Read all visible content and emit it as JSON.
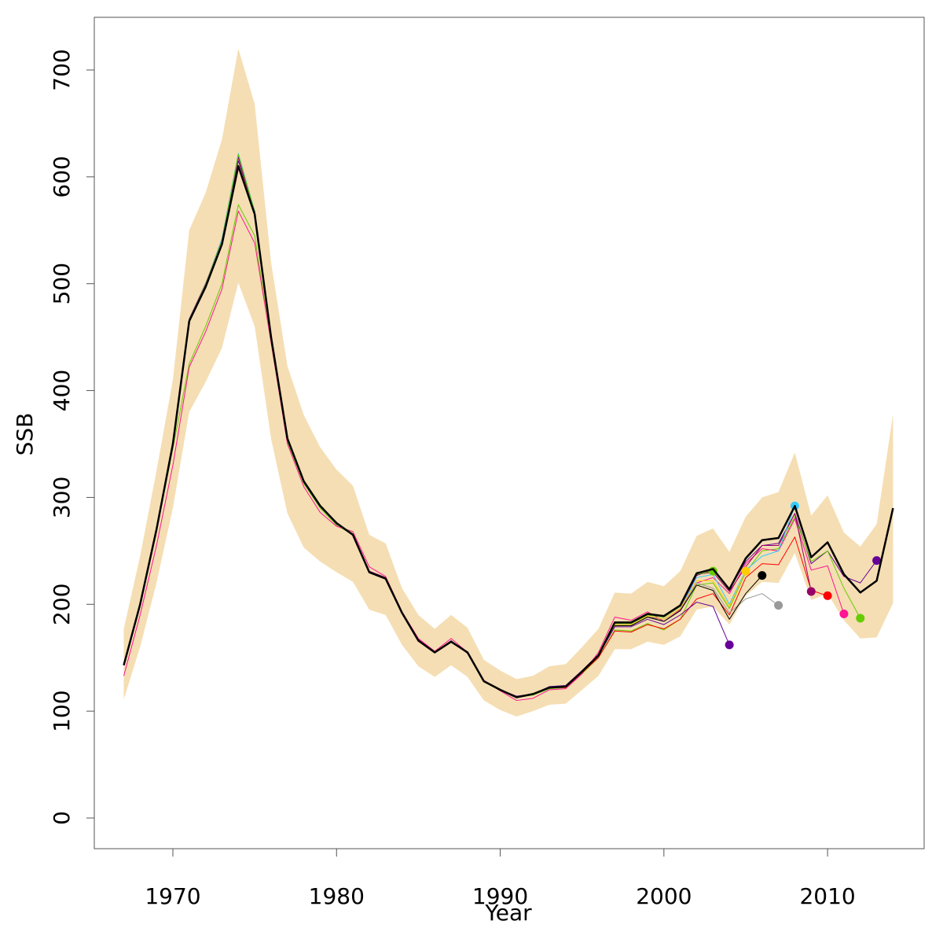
{
  "chart_data": {
    "type": "line",
    "x_label": "Year",
    "y_label": "SSB",
    "x": [
      1967,
      1968,
      1969,
      1970,
      1971,
      1972,
      1973,
      1974,
      1975,
      1976,
      1977,
      1978,
      1979,
      1980,
      1981,
      1982,
      1983,
      1984,
      1985,
      1986,
      1987,
      1988,
      1989,
      1990,
      1991,
      1992,
      1993,
      1994,
      1995,
      1996,
      1997,
      1998,
      1999,
      2000,
      2001,
      2002,
      2003,
      2004,
      2005,
      2006,
      2007,
      2008,
      2009,
      2010,
      2011,
      2012,
      2013,
      2014
    ],
    "xlim": [
      1965.2,
      2015.9
    ],
    "xticks": [
      1970,
      1980,
      1990,
      2000,
      2010
    ],
    "ylim": [
      -28.7,
      749.3
    ],
    "yticks": [
      0,
      100,
      200,
      300,
      400,
      500,
      600,
      700
    ],
    "band": {
      "color": "#f5deb3",
      "upper": [
        177,
        245,
        325,
        410,
        550,
        585,
        635,
        720,
        668,
        520,
        423,
        377,
        347,
        326,
        311,
        265,
        257,
        215,
        190,
        177,
        190,
        178,
        148,
        138,
        130,
        133,
        142,
        144,
        160,
        177,
        211,
        210,
        221,
        217,
        231,
        264,
        271,
        249,
        282,
        300,
        305,
        342,
        283,
        302,
        267,
        254,
        275,
        378
      ],
      "lower": [
        111,
        160,
        220,
        290,
        380,
        408,
        440,
        501,
        460,
        355,
        285,
        253,
        240,
        230,
        221,
        195,
        190,
        162,
        142,
        132,
        143,
        132,
        110,
        101,
        95,
        100,
        106,
        107,
        120,
        133,
        158,
        158,
        165,
        162,
        170,
        195,
        198,
        181,
        208,
        221,
        220,
        248,
        204,
        210,
        185,
        168,
        169,
        201
      ]
    },
    "main": {
      "color": "#000000",
      "values": [
        143,
        200,
        270,
        350,
        465,
        497,
        537,
        610,
        565,
        450,
        355,
        315,
        292,
        276,
        265,
        230,
        224,
        192,
        166,
        155,
        165,
        155,
        128,
        120,
        113,
        116,
        122,
        123,
        137,
        152,
        183,
        183,
        191,
        189,
        199,
        229,
        233,
        214,
        243,
        260,
        262,
        292,
        244,
        258,
        228,
        211,
        222,
        290
      ]
    },
    "series": [
      {
        "color": "#660099",
        "values": [
          143,
          200,
          271,
          352,
          467,
          500,
          540,
          615,
          568,
          450,
          356,
          315,
          292,
          275,
          266,
          231,
          225,
          192,
          167,
          155,
          166,
          154,
          128,
          120,
          114,
          116,
          123,
          124,
          138,
          153,
          180,
          180,
          188,
          186,
          196,
          227,
          232,
          214,
          240,
          255,
          257,
          285,
          238,
          250,
          226,
          220,
          241,
          null
        ]
      },
      {
        "color": "#66cc00",
        "values": [
          143,
          199,
          268,
          346,
          425,
          460,
          500,
          574,
          545,
          445,
          352,
          313,
          290,
          274,
          265,
          230,
          224,
          191,
          166,
          155,
          165,
          155,
          128,
          120,
          113,
          115,
          121,
          122,
          135,
          150,
          176,
          175,
          182,
          176,
          186,
          218,
          220,
          196,
          230,
          250,
          252,
          282,
          240,
          250,
          215,
          187,
          null,
          null
        ]
      },
      {
        "color": "#ff1493",
        "values": [
          133,
          190,
          255,
          330,
          422,
          455,
          495,
          568,
          538,
          445,
          350,
          310,
          286,
          273,
          268,
          235,
          226,
          193,
          168,
          156,
          168,
          155,
          129,
          119,
          110,
          112,
          120,
          121,
          135,
          155,
          188,
          185,
          193,
          184,
          195,
          220,
          225,
          210,
          238,
          252,
          250,
          280,
          232,
          236,
          191,
          null,
          null,
          null
        ]
      },
      {
        "color": "#ff0000",
        "values": [
          143,
          200,
          270,
          350,
          466,
          498,
          540,
          618,
          566,
          450,
          355,
          315,
          292,
          276,
          265,
          230,
          224,
          192,
          166,
          155,
          165,
          155,
          128,
          120,
          113,
          116,
          122,
          122,
          136,
          150,
          175,
          174,
          181,
          177,
          186,
          205,
          210,
          190,
          225,
          238,
          237,
          263,
          213,
          208,
          null,
          null,
          null,
          null
        ]
      },
      {
        "color": "#990066",
        "values": [
          143,
          200,
          270,
          350,
          466,
          499,
          542,
          620,
          567,
          451,
          356,
          316,
          293,
          276,
          266,
          231,
          225,
          193,
          167,
          155,
          165,
          155,
          128,
          120,
          113,
          116,
          122,
          123,
          137,
          152,
          182,
          182,
          190,
          188,
          198,
          228,
          230,
          212,
          235,
          255,
          255,
          285,
          212,
          null,
          null,
          null,
          null,
          null
        ]
      },
      {
        "color": "#33ccff",
        "values": [
          143,
          200,
          270,
          350,
          466,
          499,
          542,
          622,
          568,
          451,
          356,
          316,
          293,
          276,
          266,
          230,
          224,
          192,
          166,
          155,
          165,
          155,
          128,
          120,
          113,
          116,
          122,
          123,
          137,
          152,
          181,
          181,
          189,
          186,
          196,
          225,
          228,
          200,
          232,
          245,
          250,
          292,
          null,
          null,
          null,
          null,
          null,
          null
        ]
      },
      {
        "color": "#999999",
        "values": [
          143,
          200,
          270,
          350,
          466,
          499,
          540,
          620,
          567,
          451,
          356,
          316,
          293,
          276,
          266,
          230,
          224,
          192,
          166,
          155,
          165,
          155,
          128,
          120,
          113,
          116,
          122,
          123,
          137,
          152,
          180,
          180,
          188,
          184,
          194,
          220,
          215,
          192,
          205,
          210,
          199,
          null,
          null,
          null,
          null,
          null,
          null,
          null
        ]
      },
      {
        "color": "#000000",
        "values": [
          143,
          200,
          270,
          350,
          466,
          499,
          540,
          619,
          567,
          451,
          356,
          316,
          293,
          276,
          266,
          230,
          224,
          192,
          166,
          155,
          165,
          155,
          128,
          120,
          113,
          116,
          122,
          123,
          137,
          152,
          180,
          180,
          188,
          184,
          194,
          218,
          213,
          186,
          210,
          227,
          null,
          null,
          null,
          null,
          null,
          null,
          null,
          null
        ]
      },
      {
        "color": "#ffcc00",
        "values": [
          143,
          200,
          270,
          350,
          466,
          499,
          540,
          619,
          567,
          451,
          356,
          316,
          293,
          276,
          266,
          230,
          224,
          192,
          166,
          155,
          165,
          155,
          128,
          120,
          113,
          116,
          122,
          123,
          137,
          152,
          181,
          181,
          189,
          186,
          196,
          222,
          222,
          198,
          231,
          null,
          null,
          null,
          null,
          null,
          null,
          null,
          null,
          null
        ]
      },
      {
        "color": "#660099",
        "values": [
          143,
          200,
          270,
          350,
          466,
          499,
          540,
          619,
          567,
          451,
          356,
          316,
          293,
          276,
          266,
          230,
          224,
          192,
          166,
          155,
          165,
          155,
          128,
          120,
          113,
          116,
          122,
          123,
          137,
          152,
          179,
          179,
          186,
          181,
          190,
          202,
          198,
          162,
          null,
          null,
          null,
          null,
          null,
          null,
          null,
          null,
          null,
          null
        ]
      },
      {
        "color": "#66cc00",
        "values": [
          143,
          200,
          270,
          350,
          466,
          499,
          540,
          621,
          567,
          451,
          356,
          316,
          293,
          276,
          266,
          230,
          224,
          192,
          166,
          155,
          165,
          155,
          128,
          120,
          113,
          116,
          122,
          123,
          137,
          152,
          182,
          182,
          190,
          188,
          198,
          228,
          231,
          null,
          null,
          null,
          null,
          null,
          null,
          null,
          null,
          null,
          null,
          null
        ]
      }
    ]
  }
}
